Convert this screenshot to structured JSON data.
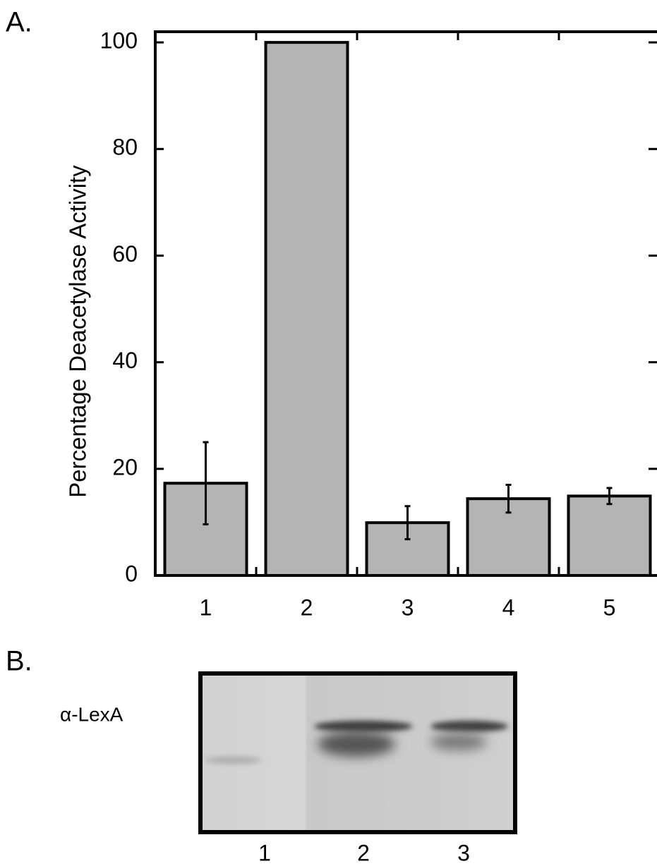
{
  "chart_data": {
    "type": "bar",
    "panel_label": "A.",
    "y_label": "Percentage Deacetylase Activity",
    "categories": [
      "1",
      "2",
      "3",
      "4",
      "5"
    ],
    "series": [
      {
        "color": "#b4b4b4",
        "values": [
          17.3,
          100,
          9.9,
          14.4,
          14.9
        ],
        "errors": [
          7.7,
          0,
          3.1,
          2.6,
          1.5
        ]
      }
    ],
    "ylim": [
      0,
      102
    ],
    "yticks": [
      0,
      20,
      40,
      60,
      80,
      100
    ]
  },
  "panel_b": {
    "panel_label": "B.",
    "row_label": "α-LexA",
    "lanes": [
      "1",
      "2",
      "3"
    ]
  }
}
